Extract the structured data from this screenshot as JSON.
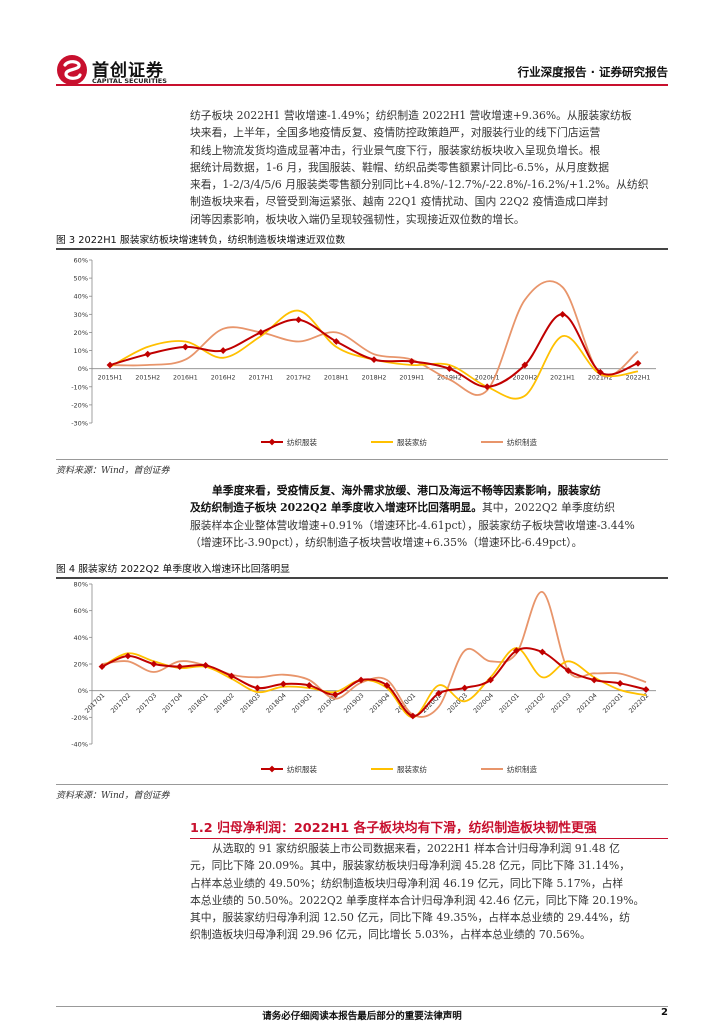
{
  "header": {
    "logo_cn": "首创证券",
    "logo_en": "CAPITAL SECURITIES",
    "report_type": "行业深度报告 · 证券研究报告"
  },
  "paragraphs": {
    "p1": [
      "纺子板块 2022H1 营收增速-1.49%；纺织制造 2022H1 营收增速+9.36%。从服装家纺板",
      "块来看，上半年，全国多地疫情反复、疫情防控政策趋严，对服装行业的线下门店运营",
      "和线上物流发货均造成显著冲击，行业景气度下行，服装家纺板块收入呈现负增长。根",
      "据统计局数据，1-6 月，我国服装、鞋帽、纺织品类零售额累计同比-6.5%，从月度数据",
      "来看，1-2/3/4/5/6 月服装类零售额分别同比+4.8%/-12.7%/-22.8%/-16.2%/+1.2%。从纺织",
      "制造板块来看，尽管受到海运紧张、越南 22Q1 疫情扰动、国内 22Q2 疫情造成口岸封",
      "闭等因素影响，板块收入端仍呈现较强韧性，实现接近双位数的增长。"
    ],
    "p2_bold": [
      "单季度来看，受疫情反复、海外需求放缓、港口及海运不畅等因素影响，服装家纺",
      "及纺织制造子板块 2022Q2 单季度收入增速环比回落明显。"
    ],
    "p2_rest": [
      "其中，2022Q2 单季度纺织",
      "服装样本企业整体营收增速+0.91%（增速环比-4.61pct），服装家纺子板块营收增速-3.44%",
      "（增速环比-3.90pct），纺织制造子板块营收增速+6.35%（增速环比-6.49pct）。"
    ],
    "p3": [
      "从选取的 91 家纺织服装上市公司数据来看，2022H1 样本合计归母净利润 91.48 亿",
      "元，同比下降 20.09%。其中，服装家纺板块归母净利润 45.28 亿元，同比下降 31.14%，",
      "占样本总业绩的 49.50%；纺织制造板块归母净利润 46.19 亿元，同比下降 5.17%，占样",
      "本总业绩的 50.50%。2022Q2 单季度样本合计归母净利润 42.46 亿元，同比下降 20.19%。",
      "其中，服装家纺归母净利润 12.50 亿元，同比下降 49.35%，占样本总业绩的 29.44%，纺",
      "织制造板块归母净利润 29.96 亿元，同比增长 5.03%，占样本总业绩的 70.56%。"
    ]
  },
  "figure3": {
    "title": "图 3 2022H1 服装家纺板块增速转负，纺织制造板块增速近双位数",
    "source": "资料来源：Wind，首创证券"
  },
  "figure4": {
    "title": "图 4 服装家纺 2022Q2 单季度收入增速环比回落明显",
    "source": "资料来源：Wind，首创证券"
  },
  "section": {
    "title": "1.2 归母净利润：2022H1 各子板块均有下滑，纺织制造板块韧性更强"
  },
  "footer": {
    "notice": "请务必仔细阅读本报告最后部分的重要法律声明",
    "page": "2"
  },
  "colors": {
    "brand_red": "#c8102e",
    "series_red": "#c00000",
    "series_yellow": "#ffc000",
    "series_orange": "#e8956b"
  },
  "chart_data": [
    {
      "type": "line",
      "x": [
        "2015H1",
        "2015H2",
        "2016H1",
        "2016H2",
        "2017H1",
        "2017H2",
        "2018H1",
        "2018H2",
        "2019H1",
        "2019H2",
        "2020H1",
        "2020H2",
        "2021H1",
        "2021H2",
        "2022H1"
      ],
      "ylim": [
        -30,
        60
      ],
      "yticks": [
        "60%",
        "50%",
        "40%",
        "30%",
        "20%",
        "10%",
        "0%",
        "-10%",
        "-20%",
        "-30%"
      ],
      "legend_position": "bottom",
      "series": [
        {
          "name": "纺织服装",
          "values": [
            2,
            8,
            12,
            10,
            20,
            27,
            15,
            5,
            4,
            0,
            -10,
            2,
            30,
            -2,
            3
          ]
        },
        {
          "name": "服装家纺",
          "values": [
            1,
            12,
            15,
            6,
            18,
            32,
            12,
            5,
            2,
            2,
            -10,
            -15,
            18,
            -3,
            -1.5
          ]
        },
        {
          "name": "纺织制造",
          "values": [
            2,
            2,
            5,
            22,
            20,
            15,
            20,
            8,
            5,
            -6,
            -12,
            38,
            45,
            -3,
            9.4
          ]
        }
      ]
    },
    {
      "type": "line",
      "x": [
        "2017Q1",
        "2017Q2",
        "2017Q3",
        "2017Q4",
        "2018Q1",
        "2018Q2",
        "2018Q3",
        "2018Q4",
        "2019Q1",
        "2019Q2",
        "2019Q3",
        "2019Q4",
        "2020Q1",
        "2020Q2",
        "2020Q3",
        "2020Q4",
        "2021Q1",
        "2021Q2",
        "2021Q3",
        "2021Q4",
        "2022Q1",
        "2022Q2"
      ],
      "ylim": [
        -40,
        80
      ],
      "yticks": [
        "80%",
        "60%",
        "40%",
        "20%",
        "0%",
        "-20%",
        "-40%"
      ],
      "legend_position": "bottom",
      "series": [
        {
          "name": "纺织服装",
          "values": [
            18,
            26,
            20,
            18,
            19,
            11,
            2,
            5,
            4,
            -3,
            8,
            4,
            -19,
            -2,
            2,
            8,
            30,
            29,
            15,
            8,
            5.5,
            0.9
          ]
        },
        {
          "name": "服装家纺",
          "values": [
            18,
            28,
            22,
            17,
            18,
            9,
            -1,
            3,
            2,
            -1,
            8,
            2,
            -20,
            4,
            -8,
            10,
            32,
            10,
            22,
            10,
            0.5,
            -3.4
          ]
        },
        {
          "name": "纺织制造",
          "values": [
            20,
            22,
            14,
            22,
            19,
            12,
            10,
            12,
            8,
            -6,
            6,
            8,
            -18,
            -12,
            30,
            22,
            28,
            74,
            15,
            13,
            12.8,
            6.4
          ]
        }
      ]
    }
  ]
}
